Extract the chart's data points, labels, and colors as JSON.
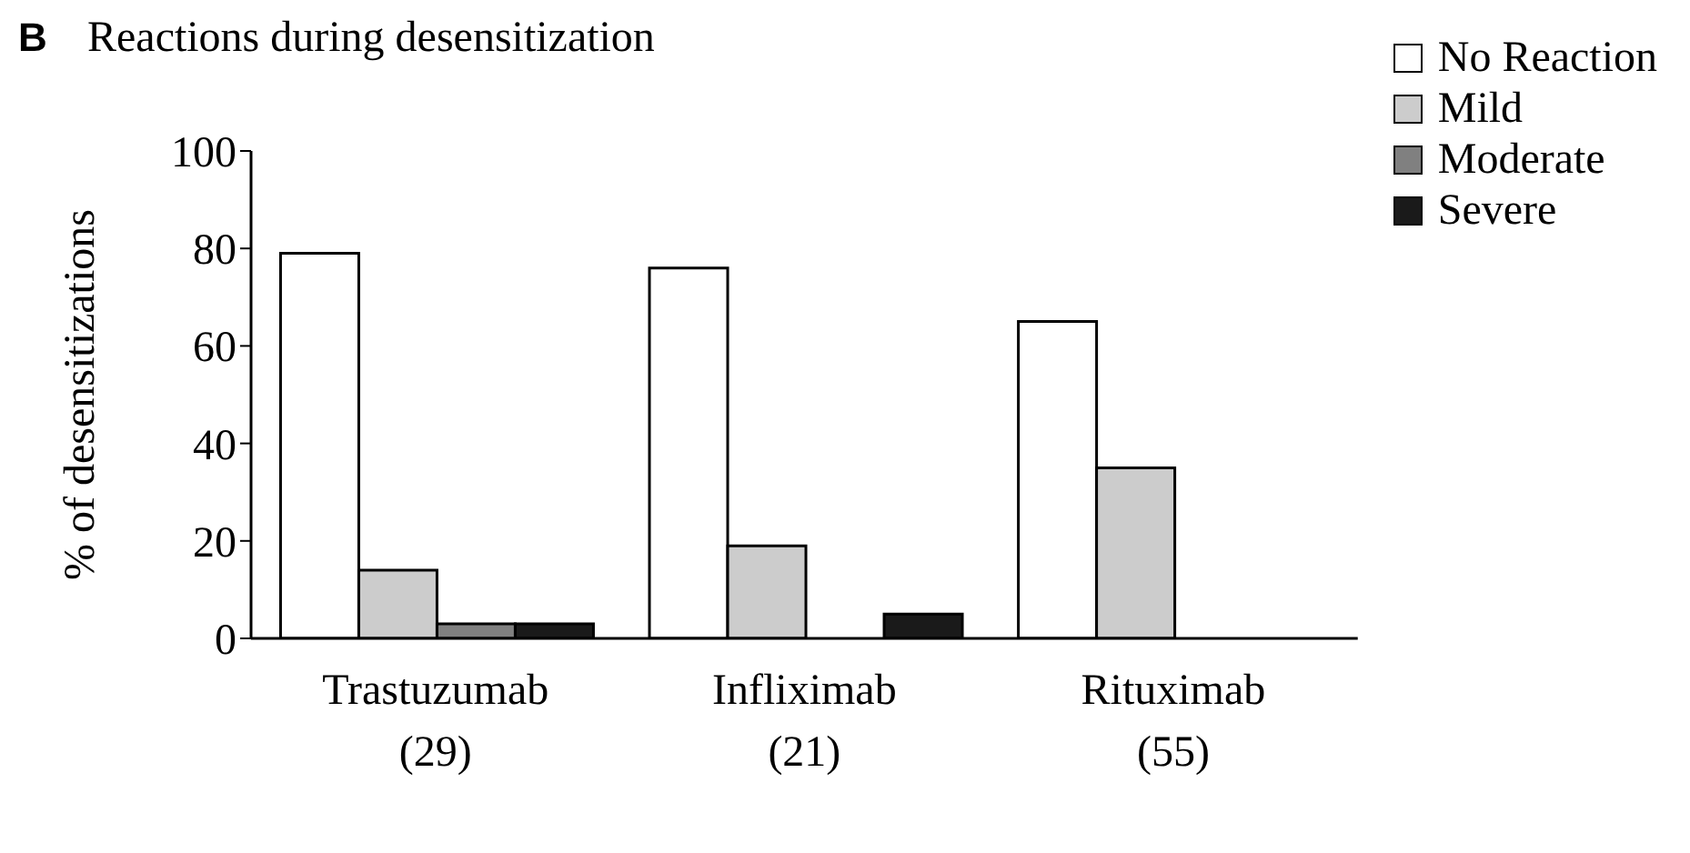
{
  "chart_data": {
    "type": "bar",
    "title": "Reactions during desensitization",
    "ylabel": "% of desensitizations",
    "annotations": [
      "B"
    ],
    "categories": [
      "Trastuzumab\n(29)",
      "Infliximab\n(21)",
      "Rituximab\n(55)"
    ],
    "series": [
      {
        "name": "No Reaction",
        "color": "#ffffff",
        "values": [
          79,
          76,
          65
        ]
      },
      {
        "name": "Mild",
        "color": "#cccccc",
        "values": [
          14,
          19,
          35
        ]
      },
      {
        "name": "Moderate",
        "color": "#808080",
        "values": [
          3,
          0,
          0
        ]
      },
      {
        "name": "Severe",
        "color": "#1a1a1a",
        "values": [
          3,
          5,
          0
        ]
      }
    ],
    "ylim": [
      0,
      100
    ],
    "yticks": [
      0,
      20,
      40,
      60,
      80,
      100
    ],
    "grid": false,
    "legend": "top right"
  }
}
